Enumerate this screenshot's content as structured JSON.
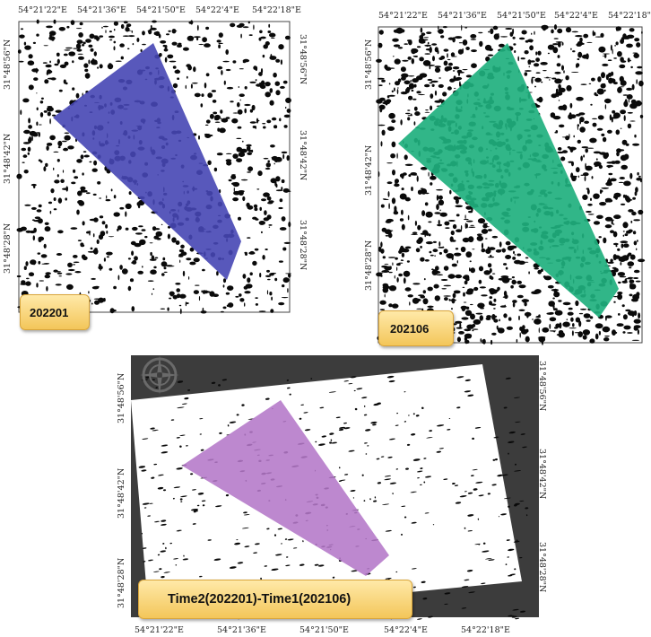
{
  "colors": {
    "panel1_polygon": "#4646b4",
    "panel1_polygon_light": "#8c8cd6",
    "panel2_polygon": "#1fb07e",
    "panel2_polygon_light": "#bfe9d4",
    "panel3_polygon": "#b478c8",
    "panel3_frame": "#3c3c3c"
  },
  "panel1": {
    "top_labels": [
      "54°21'22\"E",
      "54°21'36\"E",
      "54°21'50\"E",
      "54°22'4\"E",
      "54°22'18\"E"
    ],
    "left_labels": [
      "31°48'56\"N",
      "31°48'42\"N",
      "31°48'28\"N"
    ],
    "right_labels": [
      "31°48'56\"N",
      "31°48'42\"N",
      "31°48'28\"N"
    ],
    "tag": "202201"
  },
  "panel2": {
    "top_labels": [
      "54°21'22\"E",
      "54°21'36\"E",
      "54°21'50\"E",
      "54°22'4\"E",
      "54°22'18\""
    ],
    "left_labels": [
      "31°48'56\"N",
      "31°48'42\"N",
      "31°48'28\"N"
    ],
    "tag": "202106"
  },
  "panel3": {
    "bottom_labels": [
      "54°21'22\"E",
      "54°21'36\"E",
      "54°21'50\"E",
      "54°22'4\"E",
      "54°22'18\"E"
    ],
    "left_labels": [
      "31°48'56\"N",
      "31°48'42\"N",
      "31°48'28\"N"
    ],
    "right_labels": [
      "31°48'56\"N",
      "31°48'42\"N",
      "31°48'28\"N"
    ],
    "tag": "Time2(202201)-Time1(202106)"
  },
  "icons": [
    "compass-rose-icon"
  ]
}
